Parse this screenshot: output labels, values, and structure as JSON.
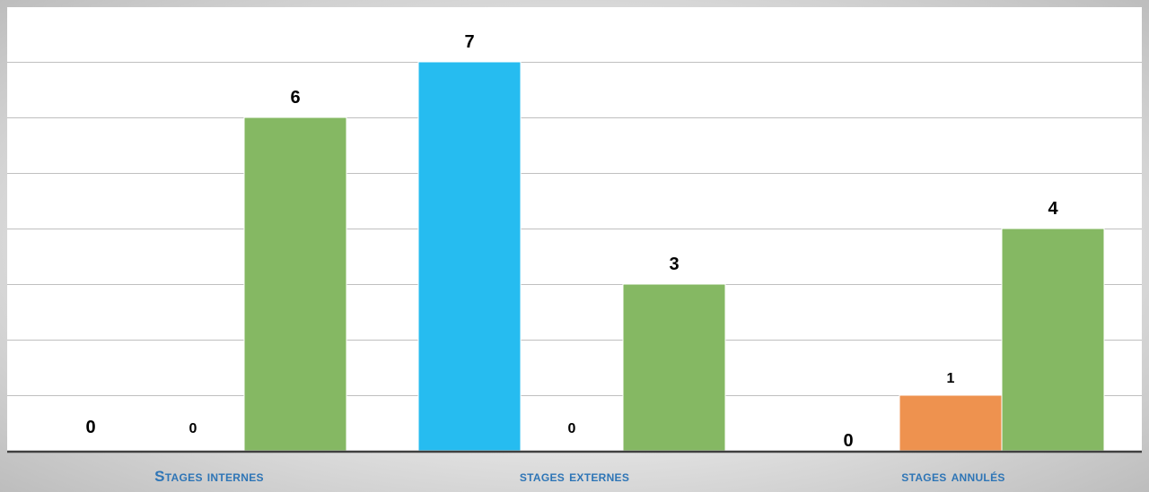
{
  "chart_data": {
    "type": "bar",
    "categories": [
      "Stages internes",
      "stages externes",
      "stages annulés"
    ],
    "series": [
      {
        "color": "#26bcf0",
        "values": [
          0,
          7,
          0
        ]
      },
      {
        "color": "#ee924f",
        "values": [
          0,
          0,
          1
        ]
      },
      {
        "color": "#85b863",
        "values": [
          6,
          3,
          4
        ]
      }
    ],
    "ylim": [
      0,
      7
    ],
    "grid": true,
    "gridlines": [
      0,
      1,
      2,
      3,
      4,
      5,
      6,
      7
    ],
    "data_labels": true,
    "label_color": "#000000",
    "axis_color": "#404040",
    "grid_color": "#bfbfbf"
  }
}
